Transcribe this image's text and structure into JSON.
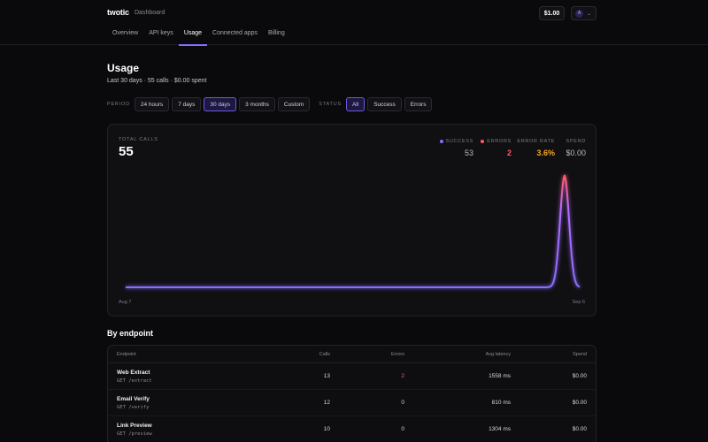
{
  "brand": "twotic",
  "breadcrumb": "Dashboard",
  "credit": "$1.00",
  "account_initial": "A",
  "nav": [
    {
      "label": "Overview",
      "active": false
    },
    {
      "label": "API keys",
      "active": false
    },
    {
      "label": "Usage",
      "active": true
    },
    {
      "label": "Connected apps",
      "active": false
    },
    {
      "label": "Billing",
      "active": false
    }
  ],
  "page": {
    "title": "Usage",
    "subtitle": "Last 30 days · 55 calls · $0.00 spent"
  },
  "filters": {
    "period_label": "PERIOD",
    "period_options": [
      "24 hours",
      "7 days",
      "30 days",
      "3 months",
      "Custom"
    ],
    "period_selected": "30 days",
    "status_label": "STATUS",
    "status_options": [
      "All",
      "Success",
      "Errors"
    ],
    "status_selected": "All"
  },
  "summary": {
    "total_label": "TOTAL CALLS",
    "total_value": "55",
    "success_label": "SUCCESS",
    "success_value": "53",
    "errors_label": "ERRORS",
    "errors_value": "2",
    "error_rate_label": "ERROR RATE",
    "error_rate_value": "3.6%",
    "spend_label": "SPEND",
    "spend_value": "$0.00"
  },
  "colors": {
    "accent": "#8b6cff",
    "success": "#8b6cff",
    "error": "#ff5a6a",
    "warning": "#f5a524"
  },
  "chart_data": {
    "type": "line",
    "x_start_label": "Aug 7",
    "x_end_label": "Sep 6",
    "x": [
      "Aug 7",
      "Aug 8",
      "Aug 9",
      "Aug 10",
      "Aug 11",
      "Aug 12",
      "Aug 13",
      "Aug 14",
      "Aug 15",
      "Aug 16",
      "Aug 17",
      "Aug 18",
      "Aug 19",
      "Aug 20",
      "Aug 21",
      "Aug 22",
      "Aug 23",
      "Aug 24",
      "Aug 25",
      "Aug 26",
      "Aug 27",
      "Aug 28",
      "Aug 29",
      "Aug 30",
      "Aug 31",
      "Sep 1",
      "Sep 2",
      "Sep 3",
      "Sep 4",
      "Sep 5",
      "Sep 6"
    ],
    "series": [
      {
        "name": "SUCCESS",
        "values": [
          0,
          0,
          0,
          0,
          0,
          0,
          0,
          0,
          0,
          0,
          0,
          0,
          0,
          0,
          0,
          0,
          0,
          0,
          0,
          0,
          0,
          0,
          0,
          0,
          0,
          0,
          0,
          0,
          0,
          53,
          0
        ]
      },
      {
        "name": "ERRORS",
        "values": [
          0,
          0,
          0,
          0,
          0,
          0,
          0,
          0,
          0,
          0,
          0,
          0,
          0,
          0,
          0,
          0,
          0,
          0,
          0,
          0,
          0,
          0,
          0,
          0,
          0,
          0,
          0,
          0,
          0,
          2,
          0
        ]
      }
    ],
    "ylim": [
      0,
      55
    ]
  },
  "endpoints": {
    "section_title": "By endpoint",
    "headers": {
      "endpoint": "Endpoint",
      "calls": "Calls",
      "errors": "Errors",
      "latency": "Avg latency",
      "spend": "Spend"
    },
    "rows": [
      {
        "name": "Web Extract",
        "path": "GET /extract",
        "calls": "13",
        "errors": "2",
        "latency": "1558 ms",
        "spend": "$0.00"
      },
      {
        "name": "Email Verify",
        "path": "GET /verify",
        "calls": "12",
        "errors": "0",
        "latency": "810 ms",
        "spend": "$0.00"
      },
      {
        "name": "Link Preview",
        "path": "GET /preview",
        "calls": "10",
        "errors": "0",
        "latency": "1304 ms",
        "spend": "$0.00"
      }
    ]
  }
}
